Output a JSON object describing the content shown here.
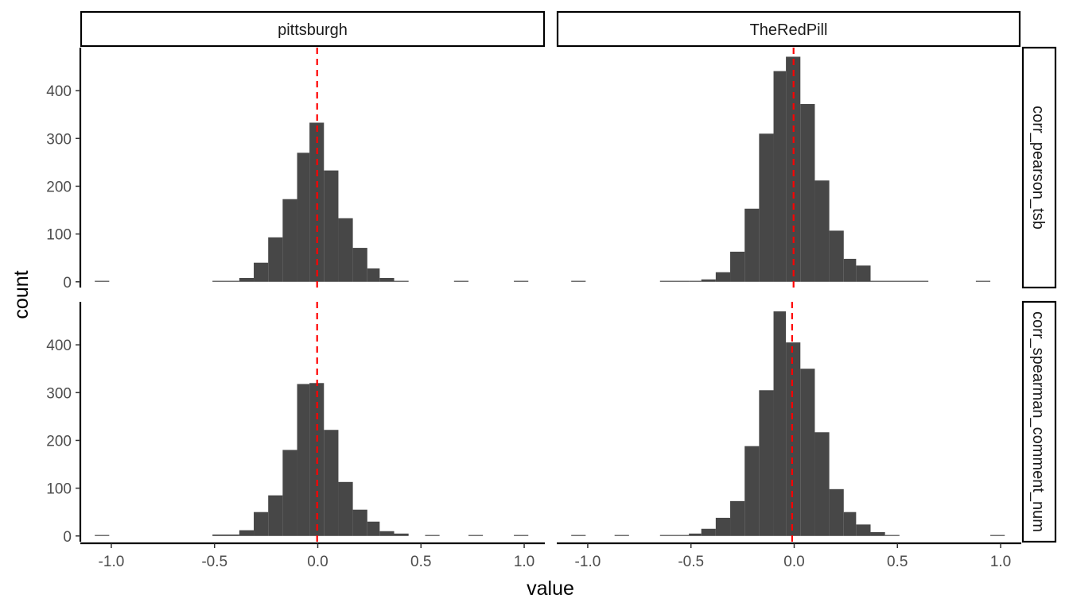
{
  "chart_data": {
    "type": "bar",
    "subtype": "faceted-histogram",
    "xlabel": "value",
    "ylabel": "count",
    "xlim": [
      -1.15,
      1.1
    ],
    "ylim": [
      -12,
      490
    ],
    "x_ticks": [
      -1.0,
      -0.5,
      0.0,
      0.5,
      1.0
    ],
    "x_tick_labels": [
      "-1.0",
      "-0.5",
      "0.0",
      "0.5",
      "1.0"
    ],
    "y_ticks": [
      0,
      100,
      200,
      300,
      400
    ],
    "y_tick_labels": [
      "0",
      "100",
      "200",
      "300",
      "400"
    ],
    "bar_color": "#474747",
    "reference_line_color": "#ff0000",
    "columns": [
      "pittsburgh",
      "TheRedPill"
    ],
    "rows": [
      "corr_pearson_tsb",
      "corr_spearman_comment_num"
    ],
    "bin_width": 0.0675,
    "panels": [
      {
        "column": "pittsburgh",
        "row": "corr_pearson_tsb",
        "vline": -0.003,
        "bins": [
          {
            "x0": -1.08,
            "x1": -1.01,
            "count": 1
          },
          {
            "x0": -0.51,
            "x1": -0.38,
            "count": 1
          },
          {
            "x0": -0.38,
            "x1": -0.31,
            "count": 8
          },
          {
            "x0": -0.31,
            "x1": -0.24,
            "count": 40
          },
          {
            "x0": -0.24,
            "x1": -0.17,
            "count": 93
          },
          {
            "x0": -0.17,
            "x1": -0.1,
            "count": 173
          },
          {
            "x0": -0.1,
            "x1": -0.04,
            "count": 270
          },
          {
            "x0": -0.04,
            "x1": 0.03,
            "count": 333
          },
          {
            "x0": 0.03,
            "x1": 0.1,
            "count": 233
          },
          {
            "x0": 0.1,
            "x1": 0.17,
            "count": 133
          },
          {
            "x0": 0.17,
            "x1": 0.24,
            "count": 71
          },
          {
            "x0": 0.24,
            "x1": 0.3,
            "count": 28
          },
          {
            "x0": 0.3,
            "x1": 0.37,
            "count": 8
          },
          {
            "x0": 0.37,
            "x1": 0.44,
            "count": 2
          },
          {
            "x0": 0.66,
            "x1": 0.73,
            "count": 1
          },
          {
            "x0": 0.95,
            "x1": 1.02,
            "count": 1
          }
        ]
      },
      {
        "column": "TheRedPill",
        "row": "corr_pearson_tsb",
        "vline": -0.003,
        "bins": [
          {
            "x0": -1.08,
            "x1": -1.01,
            "count": 1
          },
          {
            "x0": -0.65,
            "x1": -0.51,
            "count": 1
          },
          {
            "x0": -0.51,
            "x1": -0.45,
            "count": 2
          },
          {
            "x0": -0.45,
            "x1": -0.38,
            "count": 5
          },
          {
            "x0": -0.38,
            "x1": -0.31,
            "count": 20
          },
          {
            "x0": -0.31,
            "x1": -0.24,
            "count": 63
          },
          {
            "x0": -0.24,
            "x1": -0.17,
            "count": 153
          },
          {
            "x0": -0.17,
            "x1": -0.1,
            "count": 310
          },
          {
            "x0": -0.1,
            "x1": -0.04,
            "count": 441
          },
          {
            "x0": -0.04,
            "x1": 0.03,
            "count": 471
          },
          {
            "x0": 0.03,
            "x1": 0.1,
            "count": 372
          },
          {
            "x0": 0.1,
            "x1": 0.17,
            "count": 212
          },
          {
            "x0": 0.17,
            "x1": 0.24,
            "count": 107
          },
          {
            "x0": 0.24,
            "x1": 0.3,
            "count": 48
          },
          {
            "x0": 0.3,
            "x1": 0.37,
            "count": 34
          },
          {
            "x0": 0.37,
            "x1": 0.65,
            "count": 1
          },
          {
            "x0": 0.88,
            "x1": 0.95,
            "count": 1
          }
        ]
      },
      {
        "column": "pittsburgh",
        "row": "corr_spearman_comment_num",
        "vline": -0.003,
        "bins": [
          {
            "x0": -1.08,
            "x1": -1.01,
            "count": 1
          },
          {
            "x0": -0.51,
            "x1": -0.38,
            "count": 3
          },
          {
            "x0": -0.38,
            "x1": -0.31,
            "count": 12
          },
          {
            "x0": -0.31,
            "x1": -0.24,
            "count": 50
          },
          {
            "x0": -0.24,
            "x1": -0.17,
            "count": 85
          },
          {
            "x0": -0.17,
            "x1": -0.1,
            "count": 180
          },
          {
            "x0": -0.1,
            "x1": -0.04,
            "count": 318
          },
          {
            "x0": -0.04,
            "x1": 0.03,
            "count": 320
          },
          {
            "x0": 0.03,
            "x1": 0.1,
            "count": 222
          },
          {
            "x0": 0.1,
            "x1": 0.17,
            "count": 113
          },
          {
            "x0": 0.17,
            "x1": 0.24,
            "count": 55
          },
          {
            "x0": 0.24,
            "x1": 0.3,
            "count": 30
          },
          {
            "x0": 0.3,
            "x1": 0.37,
            "count": 10
          },
          {
            "x0": 0.37,
            "x1": 0.44,
            "count": 5
          },
          {
            "x0": 0.52,
            "x1": 0.59,
            "count": 1
          },
          {
            "x0": 0.73,
            "x1": 0.8,
            "count": 1
          },
          {
            "x0": 0.95,
            "x1": 1.02,
            "count": 1
          }
        ]
      },
      {
        "column": "TheRedPill",
        "row": "corr_spearman_comment_num",
        "vline": -0.01,
        "bins": [
          {
            "x0": -1.08,
            "x1": -1.01,
            "count": 1
          },
          {
            "x0": -0.87,
            "x1": -0.8,
            "count": 1
          },
          {
            "x0": -0.65,
            "x1": -0.51,
            "count": 1
          },
          {
            "x0": -0.51,
            "x1": -0.45,
            "count": 5
          },
          {
            "x0": -0.45,
            "x1": -0.38,
            "count": 15
          },
          {
            "x0": -0.38,
            "x1": -0.31,
            "count": 38
          },
          {
            "x0": -0.31,
            "x1": -0.24,
            "count": 73
          },
          {
            "x0": -0.24,
            "x1": -0.17,
            "count": 188
          },
          {
            "x0": -0.17,
            "x1": -0.1,
            "count": 305
          },
          {
            "x0": -0.1,
            "x1": -0.04,
            "count": 470
          },
          {
            "x0": -0.04,
            "x1": 0.03,
            "count": 405
          },
          {
            "x0": 0.03,
            "x1": 0.1,
            "count": 350
          },
          {
            "x0": 0.1,
            "x1": 0.17,
            "count": 217
          },
          {
            "x0": 0.17,
            "x1": 0.24,
            "count": 98
          },
          {
            "x0": 0.24,
            "x1": 0.3,
            "count": 50
          },
          {
            "x0": 0.3,
            "x1": 0.37,
            "count": 24
          },
          {
            "x0": 0.37,
            "x1": 0.44,
            "count": 8
          },
          {
            "x0": 0.44,
            "x1": 0.51,
            "count": 1
          },
          {
            "x0": 0.95,
            "x1": 1.02,
            "count": 1
          }
        ]
      }
    ]
  }
}
